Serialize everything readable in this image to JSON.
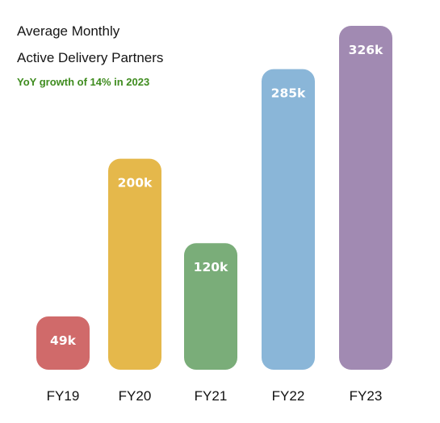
{
  "chart_data": {
    "type": "bar",
    "title_lines": [
      "Average Monthly",
      "Active Delivery Partners"
    ],
    "subtitle": "YoY growth of 14% in 2023",
    "categories": [
      "FY19",
      "FY20",
      "FY21",
      "FY22",
      "FY23"
    ],
    "values": [
      49,
      200,
      120,
      285,
      326
    ],
    "data_labels": [
      "49k",
      "200k",
      "120k",
      "285k",
      "326k"
    ],
    "colors": [
      "#d06a6a",
      "#e5b84b",
      "#7aad79",
      "#8ab6d8",
      "#a18ab2"
    ],
    "grid": false,
    "legend": "none"
  }
}
